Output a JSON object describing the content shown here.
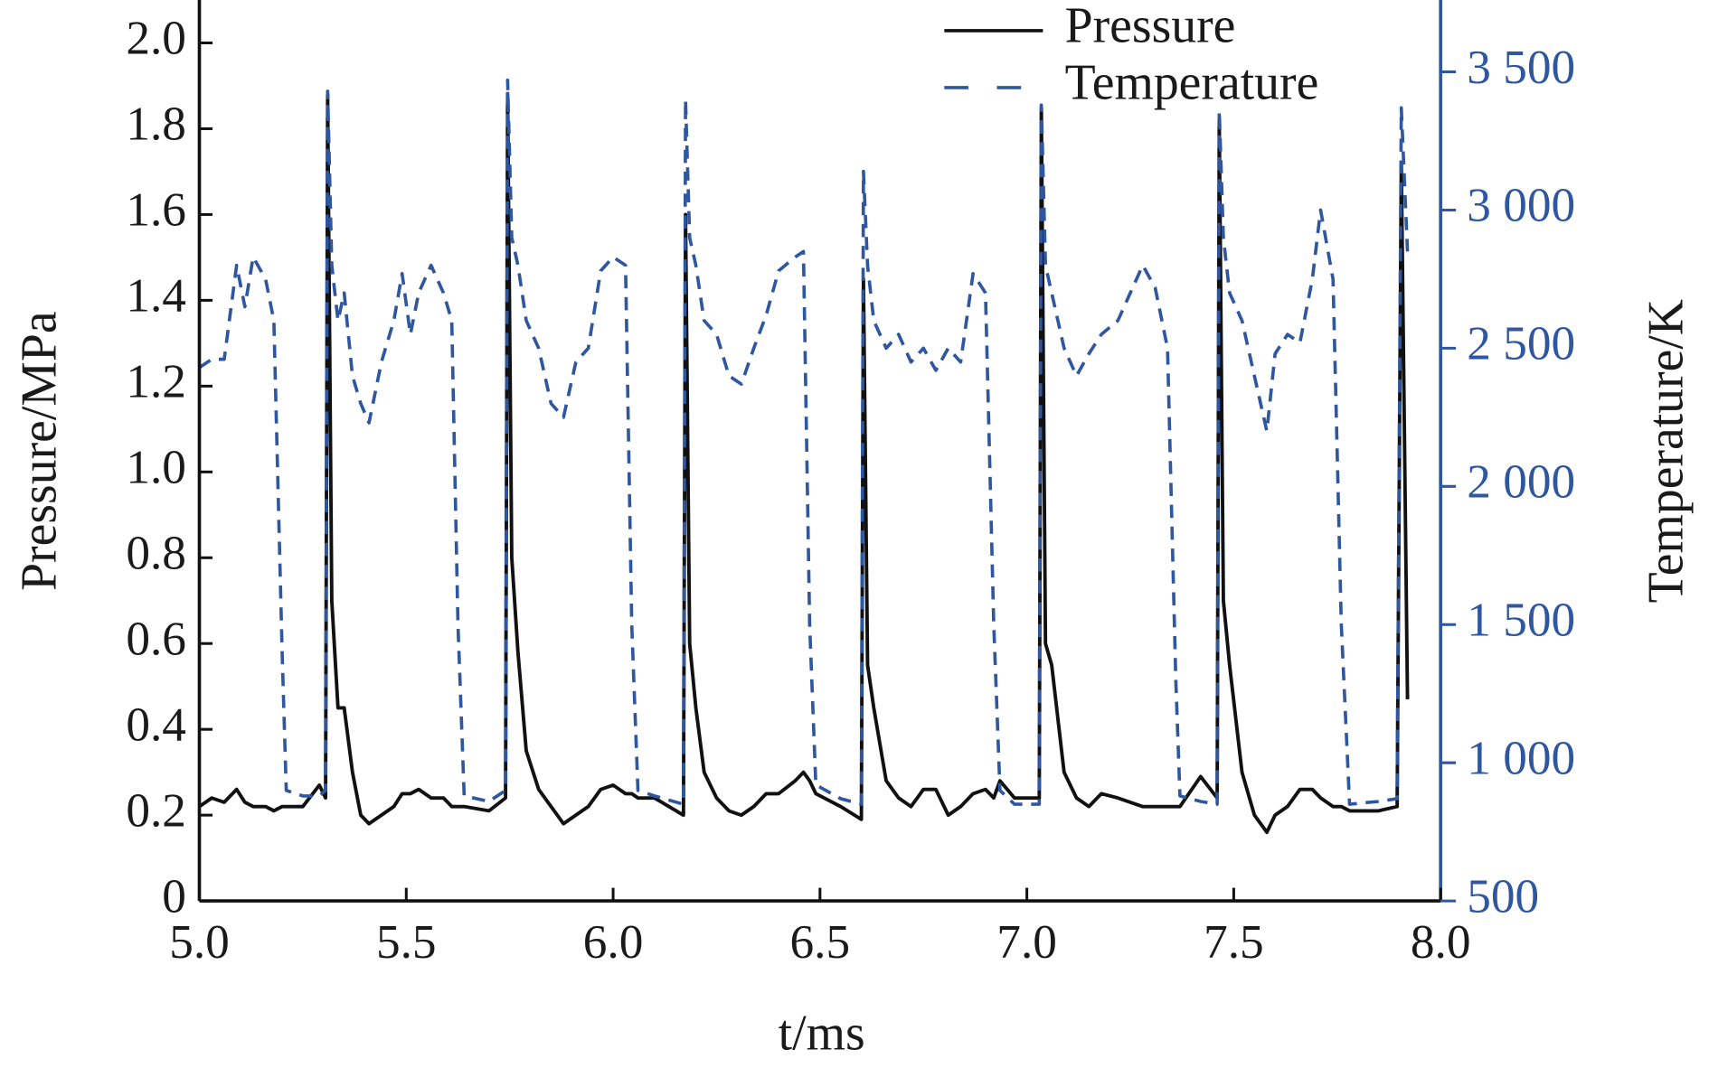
{
  "chart_data": {
    "type": "line",
    "xlabel": "t/ms",
    "ylabel": "Pressure/MPa",
    "y2label": "Temperature/K",
    "x": [
      5.0,
      5.03,
      5.06,
      5.09,
      5.11,
      5.13,
      5.16,
      5.18,
      5.2,
      5.21,
      5.25,
      5.29,
      5.305,
      5.31,
      5.32,
      5.335,
      5.35,
      5.37,
      5.39,
      5.41,
      5.44,
      5.47,
      5.49,
      5.51,
      5.53,
      5.56,
      5.59,
      5.61,
      5.625,
      5.64,
      5.7,
      5.74,
      5.745,
      5.755,
      5.77,
      5.79,
      5.82,
      5.85,
      5.88,
      5.91,
      5.94,
      5.97,
      6.0,
      6.03,
      6.045,
      6.06,
      6.1,
      6.17,
      6.175,
      6.185,
      6.2,
      6.22,
      6.25,
      6.28,
      6.31,
      6.34,
      6.37,
      6.4,
      6.44,
      6.46,
      6.475,
      6.49,
      6.55,
      6.6,
      6.605,
      6.615,
      6.63,
      6.66,
      6.69,
      6.72,
      6.75,
      6.78,
      6.81,
      6.84,
      6.87,
      6.9,
      6.92,
      6.935,
      6.97,
      7.03,
      7.035,
      7.045,
      7.06,
      7.09,
      7.12,
      7.15,
      7.18,
      7.22,
      7.25,
      7.28,
      7.31,
      7.34,
      7.36,
      7.37,
      7.42,
      7.46,
      7.465,
      7.475,
      7.49,
      7.52,
      7.55,
      7.58,
      7.6,
      7.63,
      7.66,
      7.69,
      7.71,
      7.74,
      7.76,
      7.78,
      7.85,
      7.895,
      7.905,
      7.92
    ],
    "series": [
      {
        "name": "Pressure",
        "color": "#111111",
        "dash": false,
        "values": [
          0.22,
          0.24,
          0.23,
          0.26,
          0.23,
          0.22,
          0.22,
          0.21,
          0.22,
          0.22,
          0.22,
          0.27,
          0.24,
          1.88,
          0.7,
          0.45,
          0.45,
          0.3,
          0.2,
          0.18,
          0.2,
          0.22,
          0.25,
          0.25,
          0.26,
          0.24,
          0.24,
          0.22,
          0.22,
          0.22,
          0.21,
          0.24,
          1.88,
          0.8,
          0.58,
          0.35,
          0.26,
          0.22,
          0.18,
          0.2,
          0.22,
          0.26,
          0.27,
          0.25,
          0.25,
          0.24,
          0.24,
          0.2,
          1.6,
          0.6,
          0.45,
          0.3,
          0.24,
          0.21,
          0.2,
          0.22,
          0.25,
          0.25,
          0.28,
          0.3,
          0.28,
          0.25,
          0.22,
          0.19,
          1.45,
          0.55,
          0.45,
          0.28,
          0.24,
          0.22,
          0.26,
          0.26,
          0.2,
          0.22,
          0.25,
          0.26,
          0.24,
          0.28,
          0.24,
          0.24,
          1.85,
          0.6,
          0.55,
          0.3,
          0.24,
          0.22,
          0.25,
          0.24,
          0.23,
          0.22,
          0.22,
          0.22,
          0.22,
          0.22,
          0.29,
          0.24,
          1.82,
          0.7,
          0.55,
          0.3,
          0.2,
          0.16,
          0.2,
          0.22,
          0.26,
          0.26,
          0.24,
          0.22,
          0.22,
          0.21,
          0.21,
          0.22,
          1.72,
          0.47
        ]
      },
      {
        "name": "Temperature",
        "color": "#2f57a0",
        "dash": true,
        "axis": "y2",
        "values": [
          2430,
          2460,
          2460,
          2800,
          2650,
          2830,
          2750,
          2600,
          1400,
          900,
          880,
          880,
          900,
          3430,
          2800,
          2600,
          2700,
          2400,
          2300,
          2230,
          2450,
          2600,
          2770,
          2550,
          2700,
          2800,
          2700,
          2600,
          1500,
          880,
          860,
          900,
          3470,
          2900,
          2800,
          2600,
          2500,
          2300,
          2250,
          2450,
          2500,
          2780,
          2830,
          2800,
          1500,
          900,
          880,
          850,
          3400,
          2900,
          2800,
          2600,
          2550,
          2400,
          2370,
          2500,
          2620,
          2780,
          2830,
          2850,
          1500,
          920,
          870,
          850,
          3140,
          2800,
          2600,
          2500,
          2550,
          2450,
          2500,
          2420,
          2500,
          2450,
          2770,
          2700,
          1500,
          900,
          850,
          850,
          3380,
          2800,
          2700,
          2500,
          2400,
          2480,
          2550,
          2600,
          2700,
          2800,
          2720,
          2500,
          1300,
          880,
          860,
          850,
          3360,
          2900,
          2700,
          2600,
          2400,
          2200,
          2480,
          2550,
          2520,
          2750,
          3000,
          2750,
          1500,
          850,
          860,
          870,
          3370,
          2850
        ]
      }
    ],
    "xlim": [
      5.0,
      8.0
    ],
    "xticks": [
      {
        "value": 5.0,
        "label": "5.0"
      },
      5.5,
      {
        "value": 6.0,
        "label": "6.0"
      },
      6.5,
      {
        "value": 7.0,
        "label": "7.0"
      },
      7.5,
      {
        "value": 8.0,
        "label": "8.0"
      }
    ],
    "ylim": [
      0,
      2.1
    ],
    "yticks": [
      0,
      0.2,
      0.4,
      0.6,
      0.8,
      {
        "value": 1.0,
        "label": "1.0"
      },
      1.2,
      1.4,
      1.6,
      1.8,
      {
        "value": 2.0,
        "label": "2.0"
      }
    ],
    "y2lim": [
      500,
      3760
    ],
    "y2ticks": [
      500,
      {
        "value": 1000,
        "label": "1 000"
      },
      {
        "value": 1500,
        "label": "1 500"
      },
      {
        "value": 2000,
        "label": "2 000"
      },
      {
        "value": 2500,
        "label": "2 500"
      },
      {
        "value": 3000,
        "label": "3 000"
      },
      {
        "value": 3500,
        "label": "3 500"
      }
    ],
    "legend": "upper right"
  }
}
